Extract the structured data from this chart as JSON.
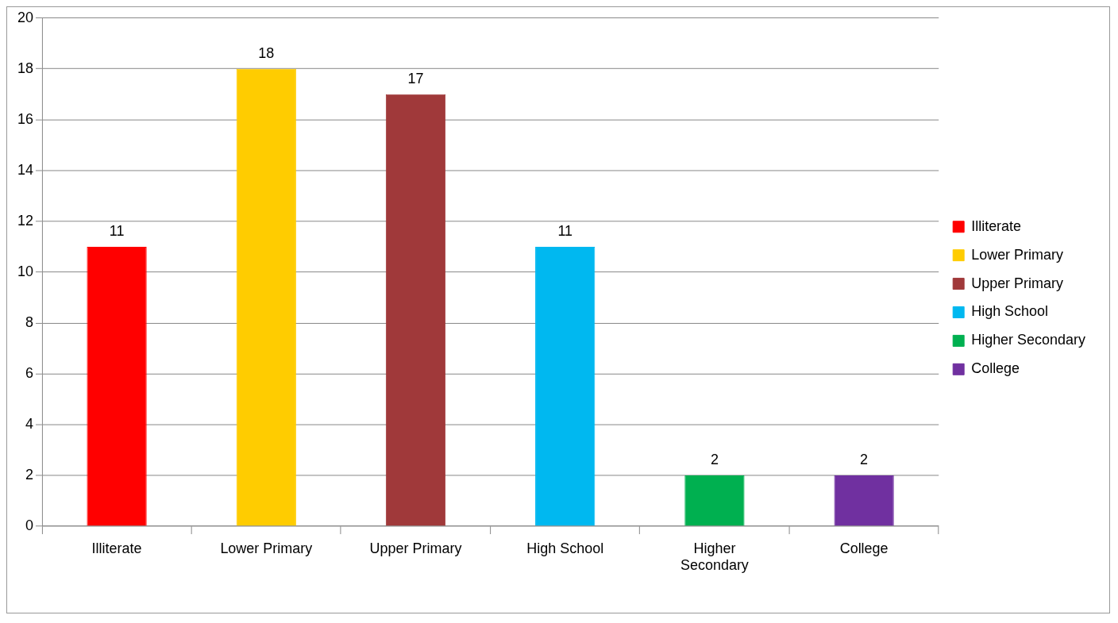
{
  "chart_data": {
    "type": "bar",
    "categories": [
      "Illiterate",
      "Lower Primary",
      "Upper Primary",
      "High School",
      "Higher Secondary",
      "College"
    ],
    "series": [
      {
        "name": "Illiterate",
        "color": "#ff0000",
        "values": [
          11,
          null,
          null,
          null,
          null,
          null
        ]
      },
      {
        "name": "Lower Primary",
        "color": "#ffcc00",
        "values": [
          null,
          18,
          null,
          null,
          null,
          null
        ]
      },
      {
        "name": "Upper Primary",
        "color": "#a0393a",
        "values": [
          null,
          null,
          17,
          null,
          null,
          null
        ]
      },
      {
        "name": "High School",
        "color": "#00b8f0",
        "values": [
          null,
          null,
          null,
          11,
          null,
          null
        ]
      },
      {
        "name": "Higher Secondary",
        "color": "#00b050",
        "values": [
          null,
          null,
          null,
          null,
          2,
          null
        ]
      },
      {
        "name": "College",
        "color": "#7030a0",
        "values": [
          null,
          null,
          null,
          null,
          null,
          2
        ]
      }
    ],
    "ylim": [
      0,
      20
    ],
    "yticks": [
      0,
      2,
      4,
      6,
      8,
      10,
      12,
      14,
      16,
      18,
      20
    ],
    "grid": "y",
    "legend": "right",
    "data_labels": true
  }
}
